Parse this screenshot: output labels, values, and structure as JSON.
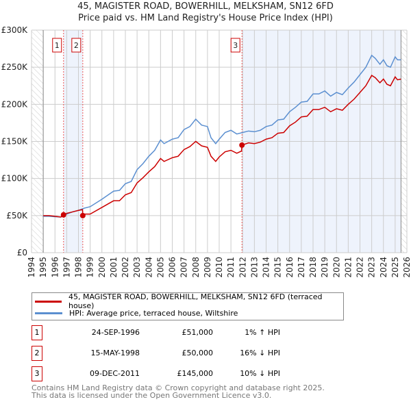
{
  "chart_data": {
    "type": "line",
    "title": "45, MAGISTER ROAD, BOWERHILL, MELKSHAM, SN12 6FD",
    "subtitle": "Price paid vs. HM Land Registry's House Price Index (HPI)",
    "xlim": [
      1994,
      2026
    ],
    "ylim": [
      0,
      300000
    ],
    "x_ticks": [
      "1994",
      "1995",
      "1996",
      "1997",
      "1998",
      "1999",
      "2000",
      "2001",
      "2002",
      "2003",
      "2004",
      "2005",
      "2006",
      "2007",
      "2008",
      "2009",
      "2010",
      "2011",
      "2012",
      "2013",
      "2014",
      "2015",
      "2016",
      "2017",
      "2018",
      "2019",
      "2020",
      "2021",
      "2022",
      "2023",
      "2024",
      "2025",
      "2026"
    ],
    "y_ticks": [
      {
        "v": 0,
        "label": "£0"
      },
      {
        "v": 50000,
        "label": "£50K"
      },
      {
        "v": 100000,
        "label": "£100K"
      },
      {
        "v": 150000,
        "label": "£150K"
      },
      {
        "v": 200000,
        "label": "£200K"
      },
      {
        "v": 250000,
        "label": "£250K"
      },
      {
        "v": 300000,
        "label": "£300K"
      }
    ],
    "grid": true,
    "data_range": [
      1995,
      2025.5
    ],
    "shaded_ranges": [
      [
        1996.73,
        1998.37
      ],
      [
        2011.94,
        2025.5
      ]
    ],
    "series": [
      {
        "name": "45, MAGISTER ROAD, BOWERHILL, MELKSHAM, SN12 6FD (terraced house)",
        "color": "#cc0000",
        "x": [
          1995,
          1995.5,
          1996,
          1996.5,
          1996.73,
          1997,
          1997.5,
          1998,
          1998.35,
          1998.37,
          1998.5,
          1999,
          2000,
          2001,
          2001.5,
          2002,
          2002.5,
          2003,
          2003.5,
          2004,
          2004.5,
          2005,
          2005.3,
          2006,
          2006.5,
          2007,
          2007.5,
          2008,
          2008.5,
          2009,
          2009.3,
          2009.7,
          2010,
          2010.5,
          2011,
          2011.5,
          2011.9,
          2011.94,
          2012.5,
          2013,
          2013.5,
          2014,
          2014.5,
          2015,
          2015.5,
          2016,
          2016.5,
          2017,
          2017.5,
          2018,
          2018.5,
          2019,
          2019.5,
          2020,
          2020.5,
          2021,
          2021.5,
          2022,
          2022.5,
          2023,
          2023.3,
          2023.7,
          2024,
          2024.3,
          2024.6,
          2025,
          2025.2,
          2025.5
        ],
        "y": [
          50000,
          50000,
          49000,
          48000,
          51000,
          53000,
          55000,
          57000,
          58000,
          50000,
          52000,
          52000,
          61000,
          70000,
          70000,
          78000,
          81000,
          94000,
          101000,
          109000,
          116000,
          127000,
          123000,
          128000,
          130000,
          139000,
          143000,
          150000,
          144000,
          142000,
          130000,
          123000,
          129000,
          136000,
          138000,
          134000,
          137000,
          145000,
          148000,
          147000,
          149000,
          153000,
          155000,
          161000,
          162000,
          171000,
          176000,
          183000,
          184000,
          193000,
          193000,
          196000,
          190000,
          194000,
          192000,
          200000,
          207000,
          216000,
          225000,
          239000,
          236000,
          229000,
          234000,
          227000,
          225000,
          237000,
          233000,
          234000
        ]
      },
      {
        "name": "HPI: Average price, terraced house, Wiltshire",
        "color": "#5b8fd0",
        "x": [
          1995,
          1995.5,
          1996,
          1996.5,
          1997,
          1997.5,
          1998,
          1998.5,
          1999,
          2000,
          2001,
          2001.5,
          2002,
          2002.5,
          2003,
          2003.5,
          2004,
          2004.5,
          2005,
          2005.3,
          2006,
          2006.5,
          2007,
          2007.5,
          2008,
          2008.5,
          2009,
          2009.3,
          2009.7,
          2010,
          2010.5,
          2011,
          2011.5,
          2012,
          2012.5,
          2013,
          2013.5,
          2014,
          2014.5,
          2015,
          2015.5,
          2016,
          2016.5,
          2017,
          2017.5,
          2018,
          2018.5,
          2019,
          2019.5,
          2020,
          2020.5,
          2021,
          2021.5,
          2022,
          2022.5,
          2023,
          2023.3,
          2023.7,
          2024,
          2024.3,
          2024.6,
          2025,
          2025.2,
          2025.5
        ],
        "y": [
          49000,
          49000,
          48500,
          48000,
          52000,
          55000,
          57000,
          60000,
          62000,
          72000,
          83000,
          84000,
          93000,
          96000,
          112000,
          120000,
          130000,
          138000,
          152000,
          147000,
          153000,
          155000,
          166000,
          170000,
          180000,
          172000,
          170000,
          155000,
          147000,
          153000,
          162000,
          165000,
          160000,
          162000,
          164000,
          163000,
          165000,
          170000,
          172000,
          179000,
          180000,
          190000,
          196000,
          203000,
          204000,
          214000,
          214000,
          218000,
          211000,
          216000,
          213000,
          222000,
          230000,
          240000,
          250000,
          266000,
          262000,
          254000,
          260000,
          252000,
          250000,
          264000,
          260000,
          260000
        ]
      }
    ],
    "sales": [
      {
        "num": "1",
        "x": 1996.73,
        "y": 51000,
        "date": "24-SEP-1996",
        "price": "£51,000",
        "hpi": "1% ↑ HPI"
      },
      {
        "num": "2",
        "x": 1998.37,
        "y": 50000,
        "date": "15-MAY-1998",
        "price": "£50,000",
        "hpi": "16% ↓ HPI"
      },
      {
        "num": "3",
        "x": 2011.94,
        "y": 145000,
        "date": "09-DEC-2011",
        "price": "£145,000",
        "hpi": "10% ↓ HPI"
      }
    ]
  },
  "footer": {
    "line1": "Contains HM Land Registry data © Crown copyright and database right 2025.",
    "line2": "This data is licensed under the Open Government Licence v3.0."
  }
}
